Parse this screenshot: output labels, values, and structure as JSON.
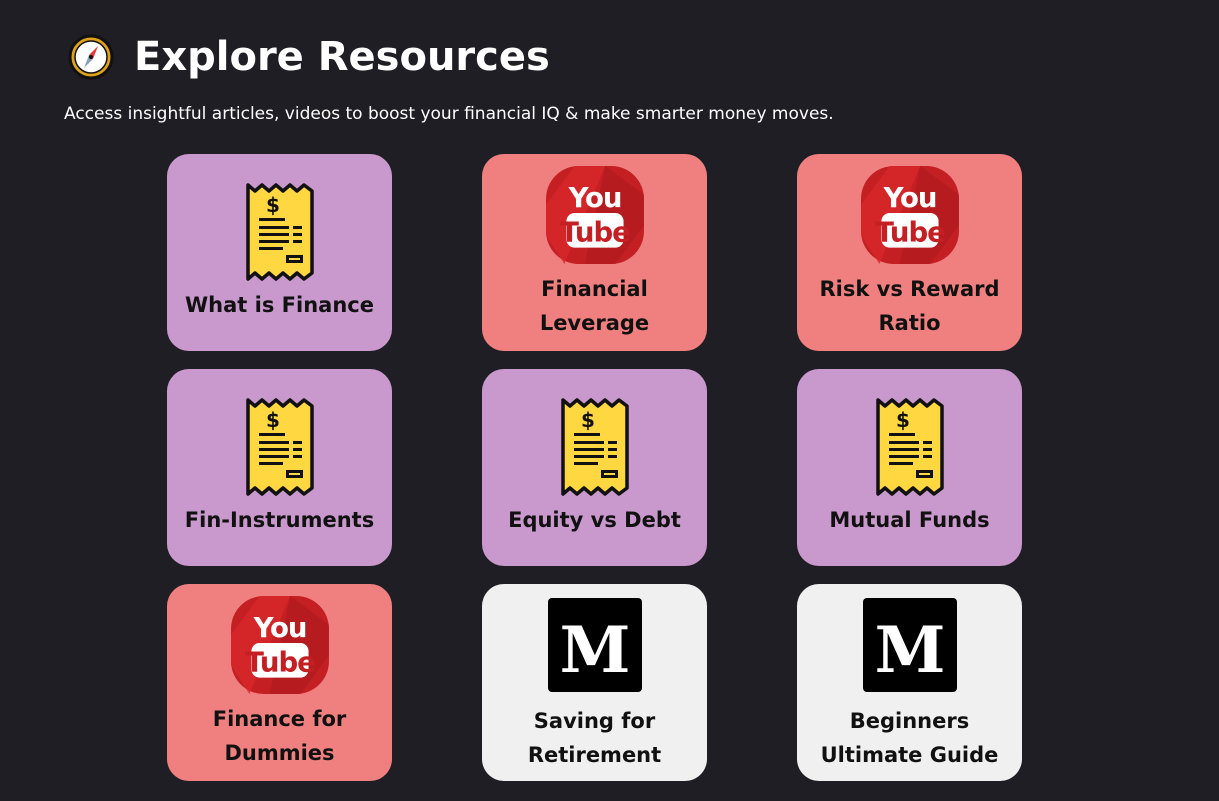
{
  "header": {
    "title": "Explore Resources",
    "subtitle": "Access insightful articles, videos to boost your financial IQ & make smarter money moves.",
    "icon": "compass-icon"
  },
  "colors": {
    "background": "#1f1e24",
    "card_article": "#c998cc",
    "card_video": "#f08080",
    "card_medium": "#f0f0f0"
  },
  "cards": [
    {
      "label": "What is Finance",
      "icon": "receipt-icon"
    },
    {
      "label": "Financial Leverage",
      "icon": "youtube-icon"
    },
    {
      "label": "Risk vs Reward Ratio",
      "icon": "youtube-icon"
    },
    {
      "label": "Fin-Instruments",
      "icon": "receipt-icon"
    },
    {
      "label": "Equity vs Debt",
      "icon": "receipt-icon"
    },
    {
      "label": "Mutual Funds",
      "icon": "receipt-icon"
    },
    {
      "label": "Finance for Dummies",
      "icon": "youtube-icon"
    },
    {
      "label": "Saving for Retirement",
      "icon": "medium-icon"
    },
    {
      "label": "Beginners Ultimate Guide",
      "icon": "medium-icon"
    }
  ]
}
